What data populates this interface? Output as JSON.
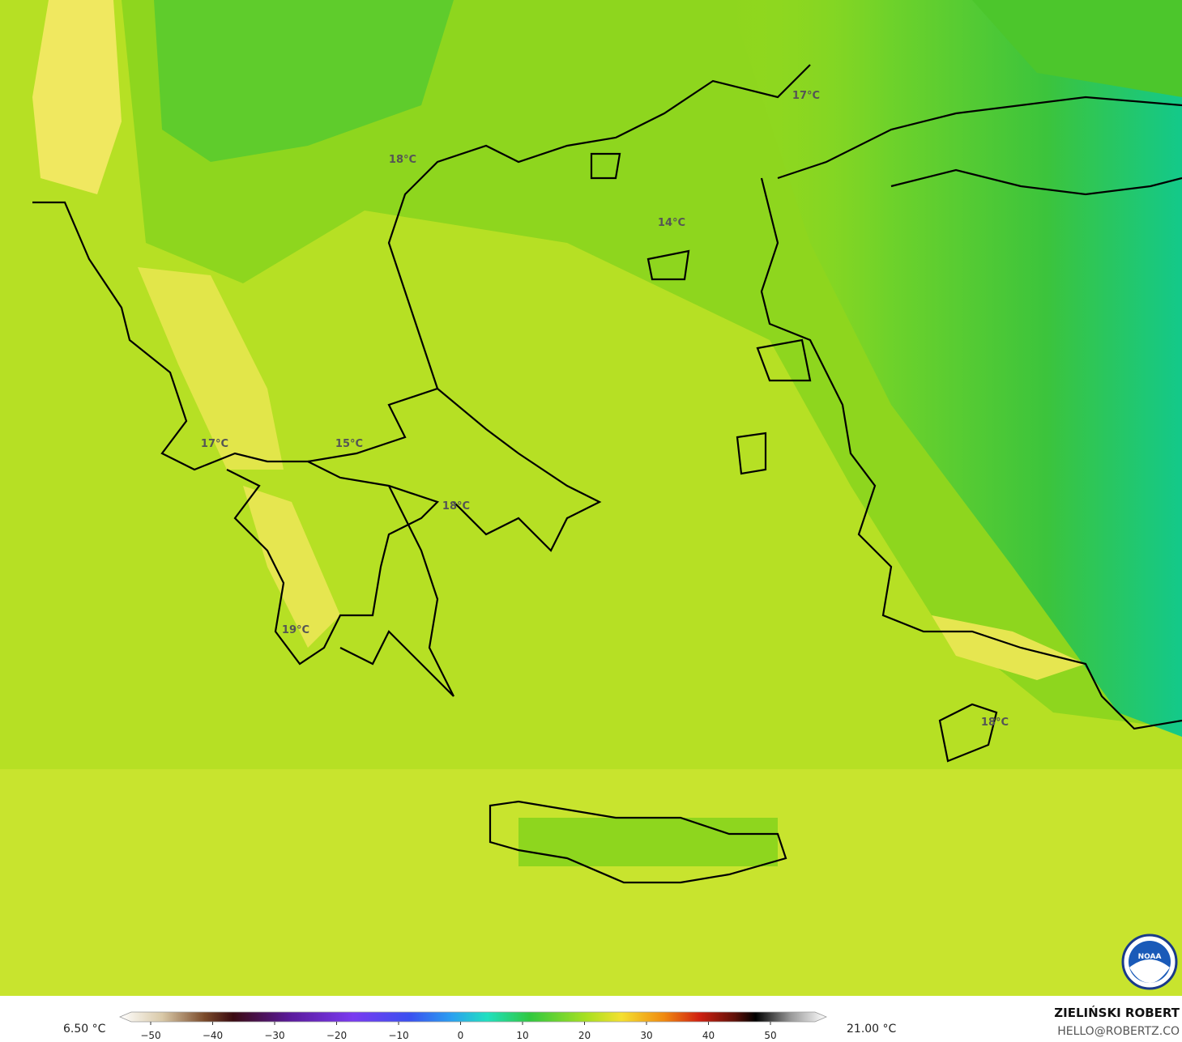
{
  "map": {
    "temperature_labels": [
      "17°C",
      "18°C",
      "14°C",
      "17°C",
      "15°C",
      "18°C",
      "19°C",
      "18°C"
    ],
    "colorbar": {
      "min_label": "6.50 °C",
      "max_label": "21.00 °C",
      "ticks": [
        {
          "value": -50,
          "label": "−50"
        },
        {
          "value": -40,
          "label": "−40"
        },
        {
          "value": -30,
          "label": "−30"
        },
        {
          "value": -20,
          "label": "−20"
        },
        {
          "value": -10,
          "label": "−10"
        },
        0,
        10,
        20,
        30,
        40,
        50
      ]
    },
    "author": "ZIELIŃSKI ROBERT",
    "contact": "HELLO@ROBERTZ.CO",
    "logo": "NOAA"
  }
}
